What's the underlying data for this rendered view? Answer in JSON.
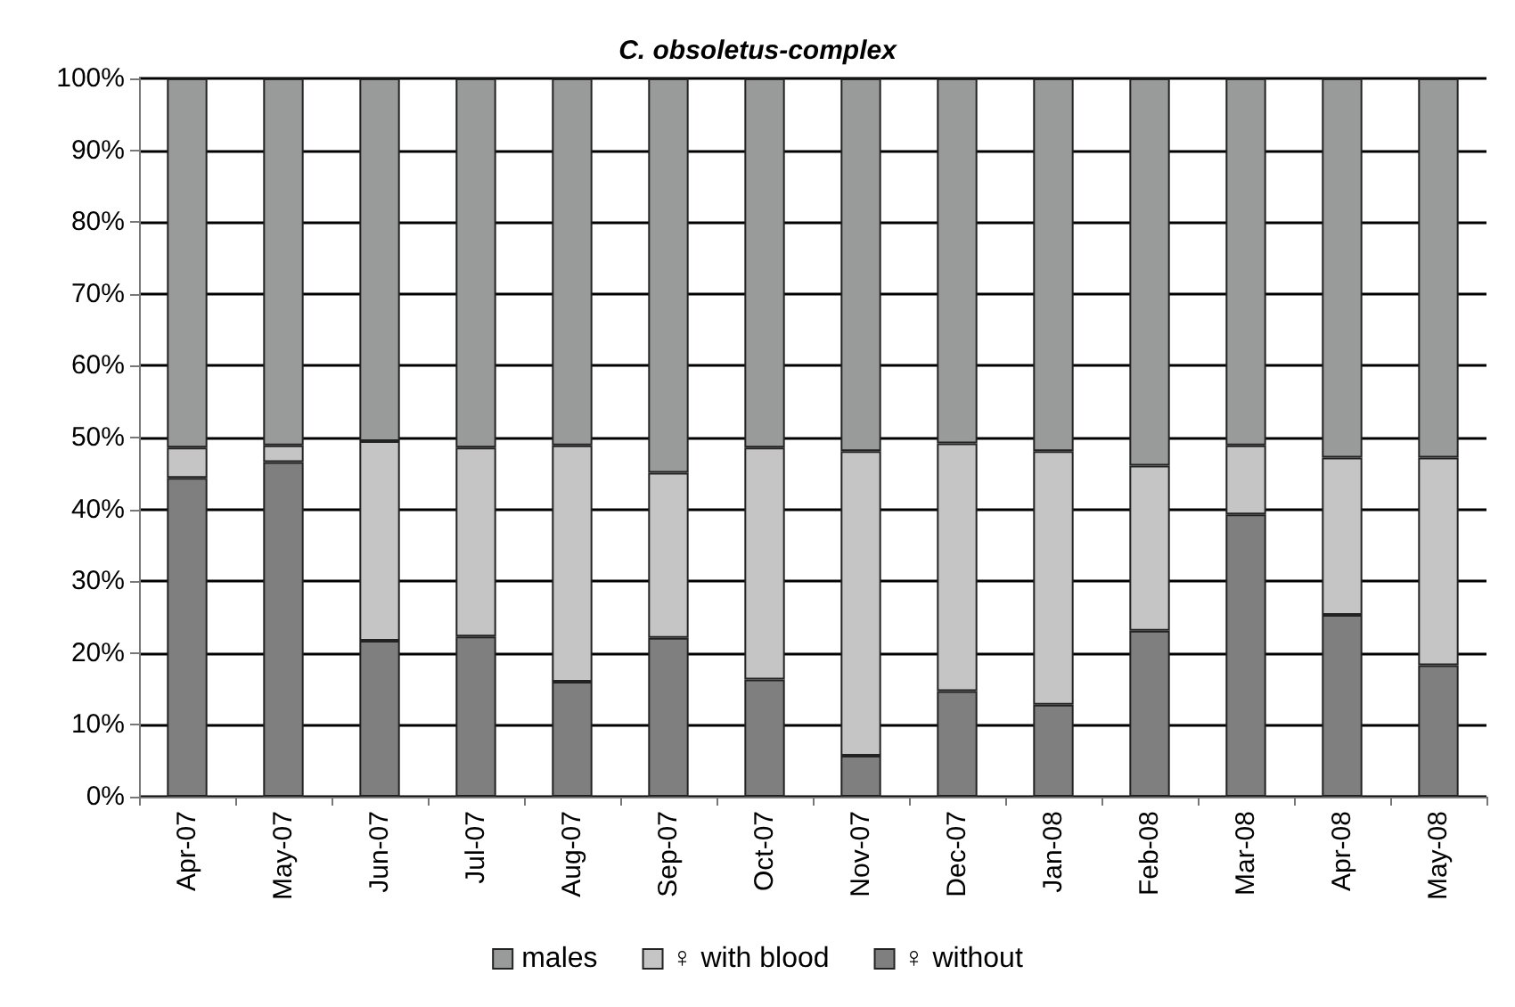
{
  "chart_data": {
    "type": "bar",
    "title": "C. obsoletus-complex",
    "stacked": true,
    "categories": [
      "Apr-07",
      "May-07",
      "Jun-07",
      "Jul-07",
      "Aug-07",
      "Sep-07",
      "Oct-07",
      "Nov-07",
      "Dec-07",
      "Jan-08",
      "Feb-08",
      "Mar-08",
      "Apr-08",
      "May-08"
    ],
    "series": [
      {
        "name": "♀ without",
        "color": "#7f7f7f",
        "values": [
          44.4,
          46.6,
          21.7,
          22.3,
          16.0,
          22.1,
          16.3,
          5.7,
          14.7,
          12.8,
          23.1,
          39.3,
          25.3,
          18.3
        ]
      },
      {
        "name": "♀ with blood",
        "color": "#c4c5c4",
        "values": [
          4.2,
          2.3,
          27.8,
          26.3,
          32.9,
          23.0,
          32.3,
          42.4,
          34.5,
          35.3,
          23.0,
          9.6,
          21.9,
          28.9
        ]
      },
      {
        "name": "males",
        "color": "#999b9a",
        "values": [
          51.4,
          51.1,
          50.5,
          51.4,
          51.1,
          54.9,
          51.4,
          51.9,
          50.8,
          51.9,
          53.9,
          51.1,
          52.8,
          52.8
        ]
      }
    ],
    "ylim": [
      0,
      100
    ],
    "yticks": [
      {
        "value": 0,
        "label": "0%"
      },
      {
        "value": 10,
        "label": "10%"
      },
      {
        "value": 20,
        "label": "20%"
      },
      {
        "value": 30,
        "label": "30%"
      },
      {
        "value": 40,
        "label": "40%"
      },
      {
        "value": 50,
        "label": "50%"
      },
      {
        "value": 60,
        "label": "60%"
      },
      {
        "value": 70,
        "label": "70%"
      },
      {
        "value": 80,
        "label": "80%"
      },
      {
        "value": 90,
        "label": "90%"
      },
      {
        "value": 100,
        "label": "100%"
      }
    ],
    "grid": "y",
    "legend": "bottom"
  }
}
